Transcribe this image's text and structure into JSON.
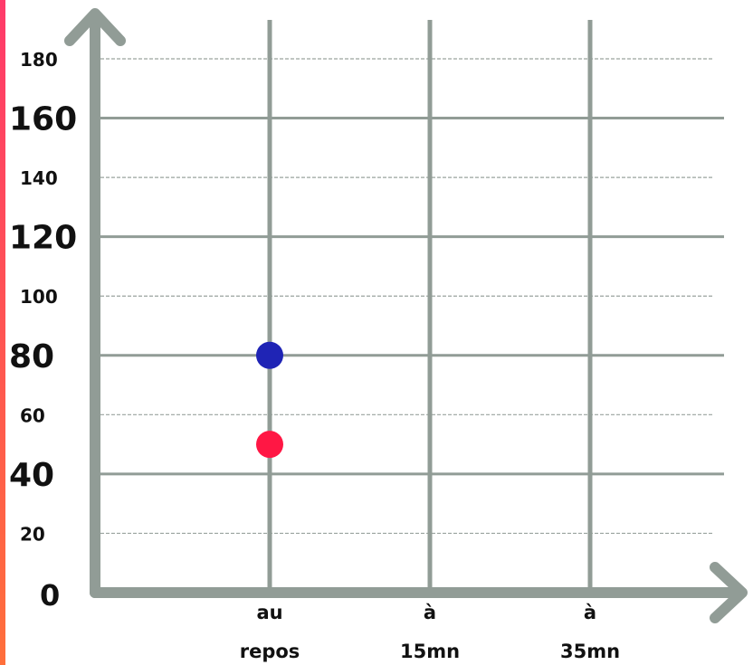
{
  "chart_data": {
    "type": "scatter",
    "title": "",
    "xlabel": "",
    "ylabel": "",
    "ylim": [
      0,
      180
    ],
    "grid": true,
    "y_ticks": [
      {
        "value": 0,
        "label": "0",
        "major": true
      },
      {
        "value": 20,
        "label": "20",
        "major": false
      },
      {
        "value": 40,
        "label": "40",
        "major": true
      },
      {
        "value": 60,
        "label": "60",
        "major": false
      },
      {
        "value": 80,
        "label": "80",
        "major": true
      },
      {
        "value": 100,
        "label": "100",
        "major": false
      },
      {
        "value": 120,
        "label": "120",
        "major": true
      },
      {
        "value": 140,
        "label": "140",
        "major": false
      },
      {
        "value": 160,
        "label": "160",
        "major": true
      },
      {
        "value": 180,
        "label": "180",
        "major": false
      }
    ],
    "categories": [
      {
        "line1": "au",
        "line2": "repos"
      },
      {
        "line1": "à",
        "line2": "15mn"
      },
      {
        "line1": "à",
        "line2": "35mn"
      }
    ],
    "series": [
      {
        "color": "#1f24b5",
        "points": [
          {
            "category": 0,
            "y": 80
          }
        ]
      },
      {
        "color": "#ff1744",
        "points": [
          {
            "category": 0,
            "y": 50
          }
        ]
      }
    ],
    "colors": {
      "axis": "#919c96",
      "grid_major": "#919c96",
      "grid_minor": "#9aa39e"
    }
  }
}
